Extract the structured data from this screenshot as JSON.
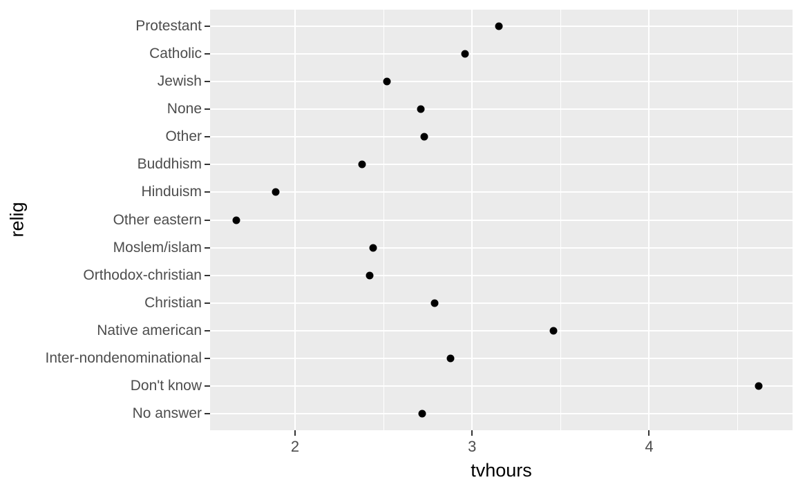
{
  "chart_data": {
    "type": "scatter",
    "title": "",
    "xlabel": "tvhours",
    "ylabel": "relig",
    "orientation": "horizontal-dotplot",
    "categories": [
      "Protestant",
      "Catholic",
      "Jewish",
      "None",
      "Other",
      "Buddhism",
      "Hinduism",
      "Other eastern",
      "Moslem/islam",
      "Orthodox-christian",
      "Christian",
      "Native american",
      "Inter-nondenominational",
      "Don't know",
      "No answer"
    ],
    "values": [
      3.15,
      2.96,
      2.52,
      2.71,
      2.73,
      2.38,
      1.89,
      1.67,
      2.44,
      2.42,
      2.79,
      3.46,
      2.88,
      4.62,
      2.72
    ],
    "xlim": [
      1.52,
      4.81
    ],
    "x_ticks": [
      2,
      3,
      4
    ],
    "x_tick_labels": [
      "2",
      "3",
      "4"
    ],
    "x_minor_ticks": [
      2.5,
      3.5,
      4.5
    ],
    "grid": "white major + minor vertical, white major horizontal per category",
    "legend": "none",
    "colors": {
      "background": "#ffffff",
      "panel_bg": "#ebebeb",
      "grid": "#ffffff",
      "point": "#000000",
      "tick_label": "#4d4d4d",
      "axis_title": "#000000",
      "tick_mark": "#333333"
    }
  }
}
